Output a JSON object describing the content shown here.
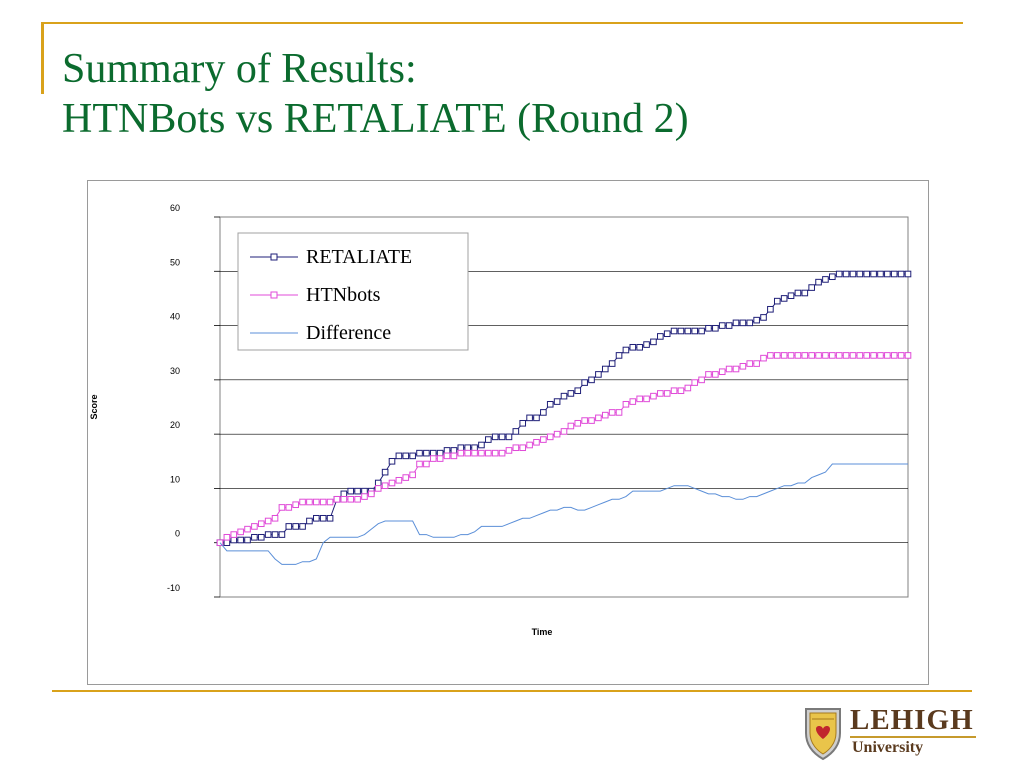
{
  "slide": {
    "title_line1": "Summary of Results:",
    "title_line2": "HTNBots vs RETALIATE (Round 2)"
  },
  "chart_data": {
    "type": "line",
    "xlabel": "Time",
    "ylabel": "Score",
    "ylim": [
      -10,
      60
    ],
    "yticks": [
      60,
      50,
      40,
      30,
      20,
      10,
      0,
      -10
    ],
    "grid": true,
    "legend_position": "top-left",
    "x": [
      0,
      1,
      2,
      3,
      4,
      5,
      6,
      7,
      8,
      9,
      10,
      11,
      12,
      13,
      14,
      15,
      16,
      17,
      18,
      19,
      20,
      21,
      22,
      23,
      24,
      25,
      26,
      27,
      28,
      29,
      30,
      31,
      32,
      33,
      34,
      35,
      36,
      37,
      38,
      39,
      40,
      41,
      42,
      43,
      44,
      45,
      46,
      47,
      48,
      49,
      50,
      51,
      52,
      53,
      54,
      55,
      56,
      57,
      58,
      59,
      60,
      61,
      62,
      63,
      64,
      65,
      66,
      67,
      68,
      69,
      70,
      71,
      72,
      73,
      74,
      75,
      76,
      77,
      78,
      79,
      80,
      81,
      82,
      83,
      84,
      85,
      86,
      87,
      88,
      89,
      90,
      91,
      92,
      93,
      94,
      95,
      96,
      97,
      98,
      99,
      100
    ],
    "series": [
      {
        "name": "RETALIATE",
        "color": "#1f1f78",
        "marker": "square",
        "values": [
          0,
          0,
          0.5,
          0.5,
          0.5,
          1,
          1,
          1.5,
          1.5,
          1.5,
          3,
          3,
          3,
          4,
          4.5,
          4.5,
          4.5,
          8,
          9,
          9.5,
          9.5,
          9.5,
          9.5,
          11,
          13,
          15,
          16,
          16,
          16,
          16.5,
          16.5,
          16.5,
          16.5,
          17,
          17,
          17.5,
          17.5,
          17.5,
          18,
          19,
          19.5,
          19.5,
          19.5,
          20.5,
          22,
          23,
          23,
          24,
          25.5,
          26,
          27,
          27.5,
          28,
          29.5,
          30,
          31,
          32,
          33,
          34.5,
          35.5,
          36,
          36,
          36.5,
          37,
          38,
          38.5,
          39,
          39,
          39,
          39,
          39,
          39.5,
          39.5,
          40,
          40,
          40.5,
          40.5,
          40.5,
          41,
          41.5,
          43,
          44.5,
          45,
          45.5,
          46,
          46,
          47,
          48,
          48.5,
          49,
          49.5,
          49.5,
          49.5,
          49.5,
          49.5,
          49.5,
          49.5,
          49.5,
          49.5,
          49.5,
          49.5
        ]
      },
      {
        "name": "HTNbots",
        "color": "#e04bd8",
        "marker": "square",
        "values": [
          0,
          1,
          1.5,
          2,
          2.5,
          3,
          3.5,
          4,
          4.5,
          6.5,
          6.5,
          7,
          7.5,
          7.5,
          7.5,
          7.5,
          7.5,
          8,
          8,
          8,
          8,
          8.5,
          9,
          10,
          10.5,
          11,
          11.5,
          12,
          12.5,
          14.5,
          14.5,
          15.5,
          15.5,
          16,
          16,
          16.5,
          16.5,
          16.5,
          16.5,
          16.5,
          16.5,
          16.5,
          17,
          17.5,
          17.5,
          18,
          18.5,
          19,
          19.5,
          20,
          20.5,
          21.5,
          22,
          22.5,
          22.5,
          23,
          23.5,
          24,
          24,
          25.5,
          26,
          26.5,
          26.5,
          27,
          27.5,
          27.5,
          28,
          28,
          28.5,
          29.5,
          30,
          31,
          31,
          31.5,
          32,
          32,
          32.5,
          33,
          33,
          34,
          34.5,
          34.5,
          34.5,
          34.5,
          34.5,
          34.5,
          34.5,
          34.5,
          34.5,
          34.5,
          34.5,
          34.5,
          34.5,
          34.5,
          34.5,
          34.5,
          34.5,
          34.5,
          34.5,
          34.5,
          34.5
        ]
      },
      {
        "name": "Difference",
        "color": "#5b8fd8",
        "marker": "none",
        "values": [
          0,
          -1.5,
          -1.5,
          -1.5,
          -1.5,
          -1.5,
          -1.5,
          -1.5,
          -3,
          -4,
          -4,
          -4,
          -3.5,
          -3.5,
          -3,
          0,
          1,
          1,
          1,
          1,
          1,
          1.5,
          2.5,
          3.5,
          4,
          4,
          4,
          4,
          4,
          1.5,
          1.5,
          1,
          1,
          1,
          1,
          1.5,
          1.5,
          2,
          3,
          3,
          3,
          3,
          3.5,
          4,
          4.5,
          4.5,
          5,
          5.5,
          6,
          6,
          6.5,
          6.5,
          6,
          6,
          6.5,
          7,
          7.5,
          8,
          8,
          8.5,
          9.5,
          9.5,
          9.5,
          9.5,
          9.5,
          10,
          10.5,
          10.5,
          10.5,
          10,
          9.5,
          9,
          9,
          8.5,
          8.5,
          8,
          8,
          8.5,
          8.5,
          9,
          9.5,
          10,
          10.5,
          10.5,
          11,
          11,
          12,
          12.5,
          13,
          14.5,
          14.5,
          14.5,
          14.5,
          14.5,
          14.5,
          14.5,
          14.5,
          14.5,
          14.5,
          14.5,
          14.5
        ]
      }
    ]
  },
  "logo": {
    "name": "LEHIGH",
    "sub": "University"
  }
}
